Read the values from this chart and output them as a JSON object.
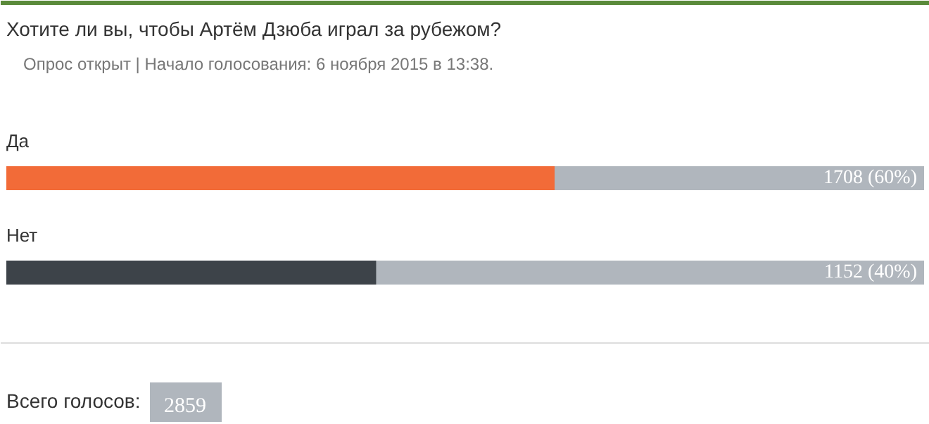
{
  "chart_data": {
    "type": "bar",
    "orientation": "horizontal",
    "title": "Хотите ли вы, чтобы Артём Дзюба играл за рубежом?",
    "subtitle": "Опрос открыт  |  Начало голосования: 6 ноября 2015 в 13:38.",
    "categories": [
      "Да",
      "Нет"
    ],
    "values": [
      1708,
      1152
    ],
    "colors": [
      "#f26b38",
      "#3d4349"
    ],
    "value_labels": [
      "1708 (60%)",
      "1152 (40%)"
    ],
    "xlim": [
      0,
      2859
    ],
    "tick_labels": false,
    "grid": false,
    "annotations": [
      "Всего голосов:",
      "2859"
    ]
  }
}
